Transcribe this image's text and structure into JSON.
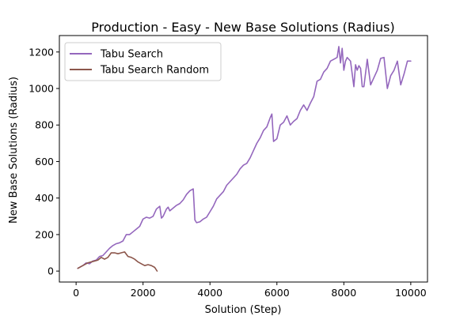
{
  "chart_data": {
    "type": "line",
    "title": "Production - Easy - New Base Solutions (Radius)",
    "xlabel": "Solution (Step)",
    "ylabel": "New Base Solutions (Radius)",
    "xlim": [
      -500,
      10500
    ],
    "ylim": [
      -60,
      1290
    ],
    "xticks": [
      0,
      2000,
      4000,
      6000,
      8000,
      10000
    ],
    "yticks": [
      0,
      200,
      400,
      600,
      800,
      1000,
      1200
    ],
    "grid": false,
    "legend_position": "top-left",
    "series": [
      {
        "name": "Tabu Search",
        "color": "#9467bd",
        "x": [
          50,
          200,
          300,
          400,
          500,
          600,
          700,
          800,
          900,
          1000,
          1100,
          1200,
          1300,
          1400,
          1500,
          1600,
          1700,
          1800,
          1900,
          2000,
          2100,
          2200,
          2300,
          2400,
          2500,
          2550,
          2600,
          2700,
          2750,
          2800,
          2900,
          3000,
          3100,
          3200,
          3300,
          3400,
          3500,
          3550,
          3600,
          3700,
          3800,
          3900,
          4000,
          4100,
          4200,
          4300,
          4400,
          4500,
          4600,
          4700,
          4800,
          4900,
          5000,
          5100,
          5200,
          5300,
          5400,
          5500,
          5600,
          5700,
          5800,
          5850,
          5900,
          6000,
          6100,
          6200,
          6300,
          6400,
          6500,
          6600,
          6700,
          6800,
          6900,
          7000,
          7100,
          7200,
          7300,
          7400,
          7500,
          7600,
          7700,
          7800,
          7850,
          7900,
          7950,
          8000,
          8050,
          8100,
          8200,
          8300,
          8350,
          8400,
          8450,
          8500,
          8550,
          8600,
          8700,
          8800,
          8900,
          9000,
          9100,
          9200,
          9300,
          9400,
          9500,
          9600,
          9700,
          9800,
          9900,
          10000
        ],
        "y": [
          15,
          30,
          45,
          40,
          55,
          60,
          80,
          85,
          105,
          125,
          140,
          150,
          155,
          165,
          200,
          200,
          215,
          230,
          245,
          285,
          295,
          290,
          300,
          340,
          355,
          290,
          300,
          340,
          350,
          330,
          345,
          360,
          370,
          390,
          420,
          440,
          450,
          280,
          265,
          270,
          285,
          295,
          325,
          355,
          395,
          415,
          435,
          470,
          490,
          510,
          530,
          560,
          580,
          590,
          620,
          660,
          700,
          730,
          770,
          790,
          840,
          860,
          710,
          725,
          800,
          815,
          850,
          800,
          820,
          835,
          880,
          910,
          880,
          920,
          955,
          1040,
          1050,
          1090,
          1110,
          1150,
          1160,
          1170,
          1230,
          1140,
          1220,
          1100,
          1150,
          1170,
          1150,
          1010,
          1130,
          1100,
          1125,
          1110,
          1010,
          1010,
          1160,
          1020,
          1060,
          1100,
          1165,
          1170,
          1000,
          1070,
          1100,
          1150,
          1020,
          1080,
          1150,
          1150
        ]
      },
      {
        "name": "Tabu Search Random",
        "color": "#8c564b",
        "x": [
          50,
          150,
          250,
          350,
          450,
          550,
          650,
          750,
          850,
          950,
          1050,
          1150,
          1250,
          1350,
          1450,
          1550,
          1650,
          1750,
          1850,
          1950,
          2050,
          2150,
          2250,
          2350,
          2420
        ],
        "y": [
          15,
          25,
          35,
          45,
          50,
          55,
          60,
          75,
          65,
          75,
          100,
          100,
          95,
          100,
          105,
          80,
          75,
          65,
          50,
          40,
          30,
          35,
          30,
          20,
          0
        ]
      }
    ]
  }
}
